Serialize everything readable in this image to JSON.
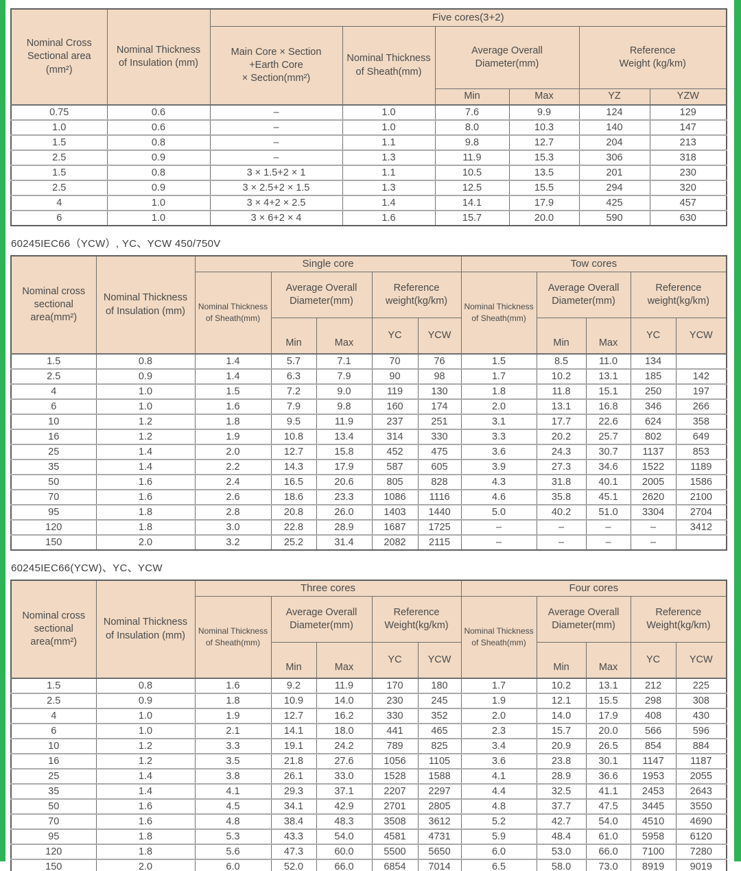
{
  "colors": {
    "accent_green": "#2fb357",
    "header_bg": "#f1d9c3"
  },
  "table1": {
    "group": "Five cores(3+2)",
    "headers": {
      "cross_area": "Nominal Cross\nSectional area\n(mm²)",
      "insulation": "Nominal Thickness\nof Insulation (mm)",
      "core_section": "Main Core × Section\n+Earth Core\n× Section(mm²)",
      "sheath": "Nominal Thickness\nof Sheath(mm)",
      "avg_diameter": "Average Overall\nDiameter(mm)",
      "ref_weight": "Reference\nWeight (kg/km)",
      "min": "Min",
      "max": "Max",
      "yz": "YZ",
      "yzw": "YZW"
    },
    "rows": [
      [
        "0.75",
        "0.6",
        "–",
        "1.0",
        "7.6",
        "9.9",
        "124",
        "129"
      ],
      [
        "1.0",
        "0.6",
        "–",
        "1.0",
        "8.0",
        "10.3",
        "140",
        "147"
      ],
      [
        "1.5",
        "0.8",
        "–",
        "1.1",
        "9.8",
        "12.7",
        "204",
        "213"
      ],
      [
        "2.5",
        "0.9",
        "–",
        "1.3",
        "11.9",
        "15.3",
        "306",
        "318"
      ],
      [
        "1.5",
        "0.8",
        "3 × 1.5+2 × 1",
        "1.1",
        "10.5",
        "13.5",
        "201",
        "230"
      ],
      [
        "2.5",
        "0.9",
        "3 × 2.5+2 × 1.5",
        "1.3",
        "12.5",
        "15.5",
        "294",
        "320"
      ],
      [
        "4",
        "1.0",
        "3 × 4+2 × 2.5",
        "1.4",
        "14.1",
        "17.9",
        "425",
        "457"
      ],
      [
        "6",
        "1.0",
        "3 × 6+2 × 4",
        "1.6",
        "15.7",
        "20.0",
        "590",
        "630"
      ]
    ]
  },
  "table2": {
    "title": "60245IEC66（YCW）, YC、YCW 450/750V",
    "groups": {
      "left": "Single core",
      "right": "Tow cores"
    },
    "headers": {
      "cross_area": "Nominal cross\nsectional\narea(mm²)",
      "insulation": "Nominal Thickness\nof Insulation (mm)",
      "sheath": "Nominal Thickness\nof Sheath(mm)",
      "avg_diameter": "Average Overall\nDiameter(mm)",
      "ref_weight": "Reference\nweight(kg/km)",
      "min": "Min",
      "max": "Max",
      "yc": "YC",
      "ycw": "YCW"
    },
    "rows": [
      [
        "1.5",
        "0.8",
        "1.4",
        "5.7",
        "7.1",
        "70",
        "76",
        "1.5",
        "8.5",
        "11.0",
        "134",
        ""
      ],
      [
        "2.5",
        "0.9",
        "1.4",
        "6.3",
        "7.9",
        "90",
        "98",
        "1.7",
        "10.2",
        "13.1",
        "185",
        "142"
      ],
      [
        "4",
        "1.0",
        "1.5",
        "7.2",
        "9.0",
        "119",
        "130",
        "1.8",
        "11.8",
        "15.1",
        "250",
        "197"
      ],
      [
        "6",
        "1.0",
        "1.6",
        "7.9",
        "9.8",
        "160",
        "174",
        "2.0",
        "13.1",
        "16.8",
        "346",
        "266"
      ],
      [
        "10",
        "1.2",
        "1.8",
        "9.5",
        "11.9",
        "237",
        "251",
        "3.1",
        "17.7",
        "22.6",
        "624",
        "358"
      ],
      [
        "16",
        "1.2",
        "1.9",
        "10.8",
        "13.4",
        "314",
        "330",
        "3.3",
        "20.2",
        "25.7",
        "802",
        "649"
      ],
      [
        "25",
        "1.4",
        "2.0",
        "12.7",
        "15.8",
        "452",
        "475",
        "3.6",
        "24.3",
        "30.7",
        "1137",
        "853"
      ],
      [
        "35",
        "1.4",
        "2.2",
        "14.3",
        "17.9",
        "587",
        "605",
        "3.9",
        "27.3",
        "34.6",
        "1522",
        "1189"
      ],
      [
        "50",
        "1.6",
        "2.4",
        "16.5",
        "20.6",
        "805",
        "828",
        "4.3",
        "31.8",
        "40.1",
        "2005",
        "1586"
      ],
      [
        "70",
        "1.6",
        "2.6",
        "18.6",
        "23.3",
        "1086",
        "1116",
        "4.6",
        "35.8",
        "45.1",
        "2620",
        "2100"
      ],
      [
        "95",
        "1.8",
        "2.8",
        "20.8",
        "26.0",
        "1403",
        "1440",
        "5.0",
        "40.2",
        "51.0",
        "3304",
        "2704"
      ],
      [
        "120",
        "1.8",
        "3.0",
        "22.8",
        "28.9",
        "1687",
        "1725",
        "–",
        "–",
        "–",
        "–",
        "3412"
      ],
      [
        "150",
        "2.0",
        "3.2",
        "25.2",
        "31.4",
        "2082",
        "2115",
        "–",
        "–",
        "–",
        "–",
        ""
      ]
    ]
  },
  "table3": {
    "title": "60245IEC66(YCW)、YC、YCW",
    "groups": {
      "left": "Three cores",
      "right": "Four cores"
    },
    "headers": {
      "cross_area": "Nominal cross\nsectional\narea(mm²)",
      "insulation": "Nominal Thickness\nof Insulation (mm)",
      "sheath": "Nominal Thickness\nof Sheath(mm)",
      "avg_diameter": "Average Overall\nDiameter(mm)",
      "ref_weight": "Reference\nWeight(kg/km)",
      "min": "Min",
      "max": "Max",
      "yc": "YC",
      "ycw": "YCW"
    },
    "rows": [
      [
        "1.5",
        "0.8",
        "1.6",
        "9.2",
        "11.9",
        "170",
        "180",
        "1.7",
        "10.2",
        "13.1",
        "212",
        "225"
      ],
      [
        "2.5",
        "0.9",
        "1.8",
        "10.9",
        "14.0",
        "230",
        "245",
        "1.9",
        "12.1",
        "15.5",
        "298",
        "308"
      ],
      [
        "4",
        "1.0",
        "1.9",
        "12.7",
        "16.2",
        "330",
        "352",
        "2.0",
        "14.0",
        "17.9",
        "408",
        "430"
      ],
      [
        "6",
        "1.0",
        "2.1",
        "14.1",
        "18.0",
        "441",
        "465",
        "2.3",
        "15.7",
        "20.0",
        "566",
        "596"
      ],
      [
        "10",
        "1.2",
        "3.3",
        "19.1",
        "24.2",
        "789",
        "825",
        "3.4",
        "20.9",
        "26.5",
        "854",
        "884"
      ],
      [
        "16",
        "1.2",
        "3.5",
        "21.8",
        "27.6",
        "1056",
        "1105",
        "3.6",
        "23.8",
        "30.1",
        "1147",
        "1187"
      ],
      [
        "25",
        "1.4",
        "3.8",
        "26.1",
        "33.0",
        "1528",
        "1588",
        "4.1",
        "28.9",
        "36.6",
        "1953",
        "2055"
      ],
      [
        "35",
        "1.4",
        "4.1",
        "29.3",
        "37.1",
        "2207",
        "2297",
        "4.4",
        "32.5",
        "41.1",
        "2453",
        "2643"
      ],
      [
        "50",
        "1.6",
        "4.5",
        "34.1",
        "42.9",
        "2701",
        "2805",
        "4.8",
        "37.7",
        "47.5",
        "3445",
        "3550"
      ],
      [
        "70",
        "1.6",
        "4.8",
        "38.4",
        "48.3",
        "3508",
        "3612",
        "5.2",
        "42.7",
        "54.0",
        "4510",
        "4690"
      ],
      [
        "95",
        "1.8",
        "5.3",
        "43.3",
        "54.0",
        "4581",
        "4731",
        "5.9",
        "48.4",
        "61.0",
        "5958",
        "6120"
      ],
      [
        "120",
        "1.8",
        "5.6",
        "47.3",
        "60.0",
        "5500",
        "5650",
        "6.0",
        "53.0",
        "66.0",
        "7100",
        "7280"
      ],
      [
        "150",
        "2.0",
        "6.0",
        "52.0",
        "66.0",
        "6854",
        "7014",
        "6.5",
        "58.0",
        "73.0",
        "8919",
        "9019"
      ]
    ]
  }
}
